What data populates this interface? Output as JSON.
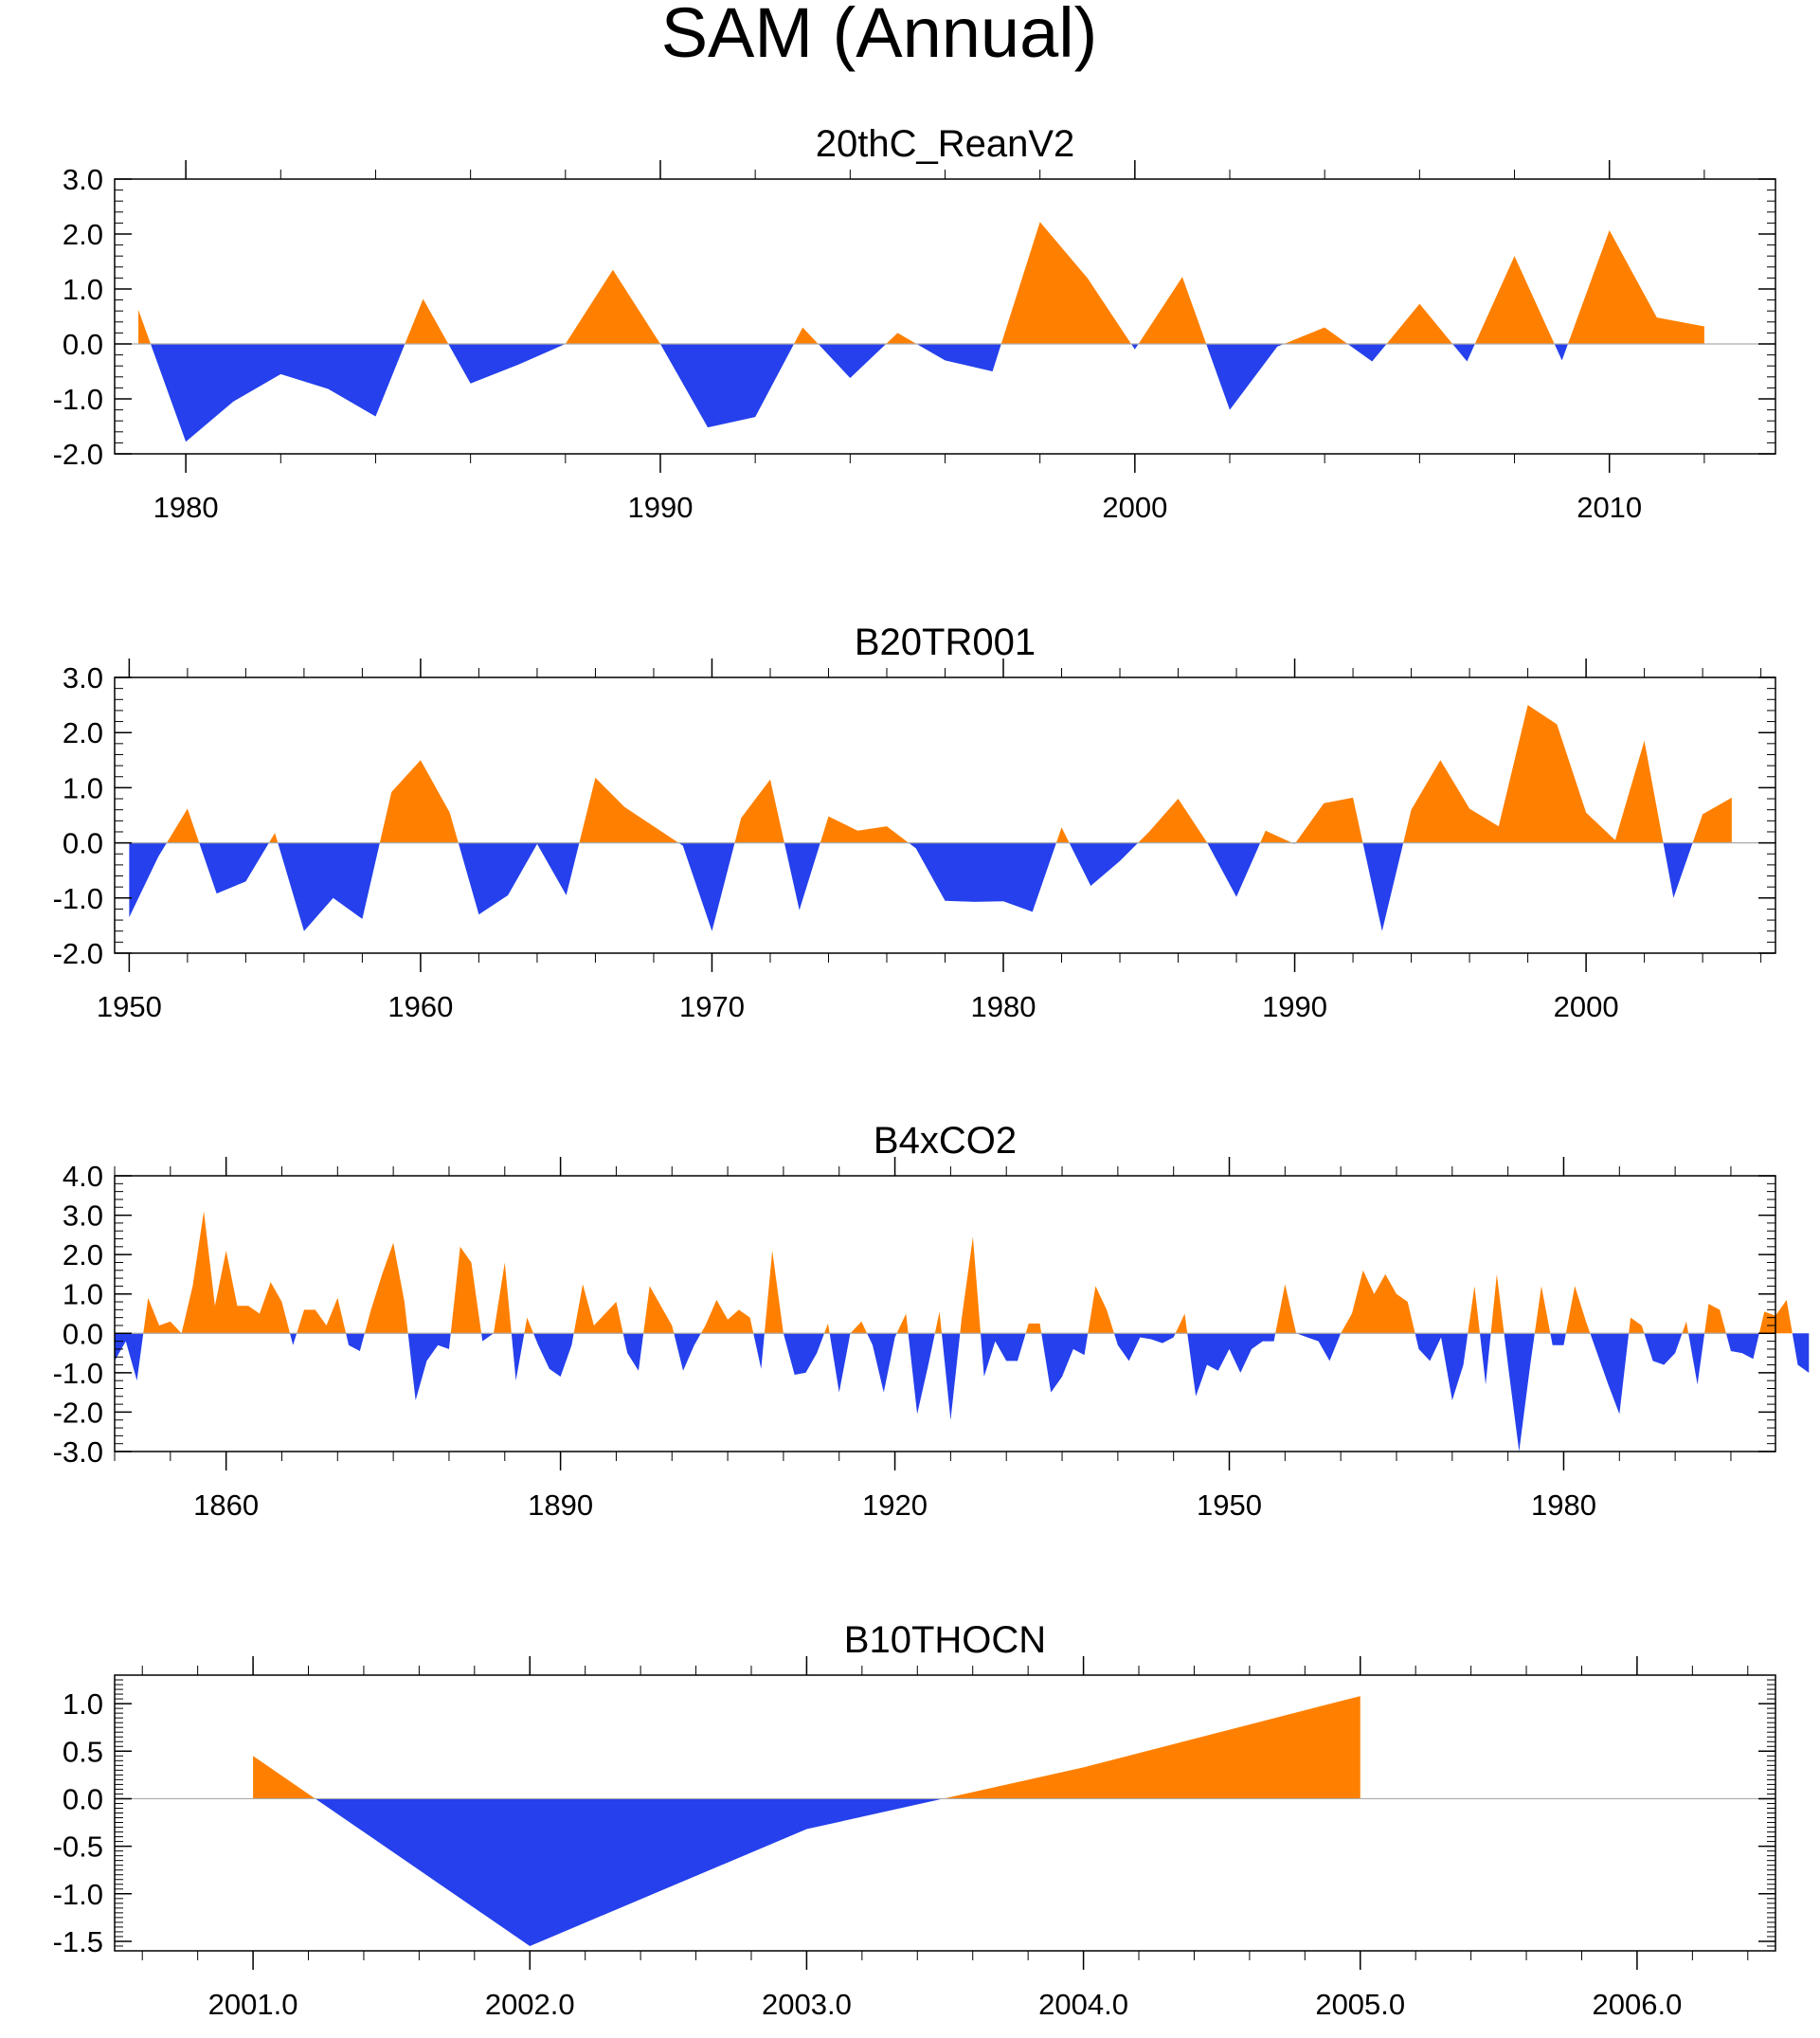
{
  "title": "SAM (Annual)",
  "colors": {
    "positive": "#ff8000",
    "negative": "#2540ec",
    "zero_line": "#aaaaaa",
    "axis": "#000000"
  },
  "chart_data": [
    {
      "type": "area",
      "title": "20thC_ReanV2",
      "xlim": [
        1978.5,
        2013.5
      ],
      "ylim": [
        -2.0,
        3.0
      ],
      "yticks": [
        -2,
        -1,
        0,
        1,
        2,
        3
      ],
      "ytick_labels": [
        "-2.0",
        "-1.0",
        "0.0",
        "1.0",
        "2.0",
        "3.0"
      ],
      "xticks": [
        1980,
        1990,
        2000,
        2010
      ],
      "xtick_labels": [
        "1980",
        "1990",
        "2000",
        "2010"
      ],
      "x_minor_step": 2,
      "y_minor_step": 0.2,
      "x": [
        1979,
        1980,
        1981,
        1982,
        1983,
        1984,
        1985,
        1986,
        1987,
        1988,
        1989,
        1990,
        1991,
        1992,
        1993,
        1994,
        1995,
        1996,
        1997,
        1998,
        1999,
        2000,
        2001,
        2002,
        2003,
        2004,
        2005,
        2006,
        2007,
        2008,
        2009,
        2010,
        2011,
        2012
      ],
      "values": [
        0.62,
        -1.78,
        -1.05,
        -0.55,
        -0.82,
        -1.32,
        0.82,
        -0.72,
        -0.38,
        0.0,
        1.35,
        0.0,
        -1.52,
        -1.33,
        0.3,
        -0.62,
        0.2,
        -0.3,
        -0.5,
        2.22,
        1.2,
        -0.1,
        1.22,
        -1.2,
        -0.05,
        0.3,
        -0.32,
        0.73,
        -0.32,
        1.6,
        -0.3,
        2.07,
        0.48,
        0.32
      ]
    },
    {
      "type": "area",
      "title": "B20TR001",
      "xlim": [
        1949.5,
        2006.5
      ],
      "ylim": [
        -2.0,
        3.0
      ],
      "yticks": [
        -2,
        -1,
        0,
        1,
        2,
        3
      ],
      "ytick_labels": [
        "-2.0",
        "-1.0",
        "0.0",
        "1.0",
        "2.0",
        "3.0"
      ],
      "xticks": [
        1950,
        1960,
        1970,
        1980,
        1990,
        2000
      ],
      "xtick_labels": [
        "1950",
        "1960",
        "1970",
        "1980",
        "1990",
        "2000"
      ],
      "x_minor_step": 2,
      "y_minor_step": 0.2,
      "x": [
        1950,
        1951,
        1952,
        1953,
        1954,
        1955,
        1956,
        1957,
        1958,
        1959,
        1960,
        1961,
        1962,
        1963,
        1964,
        1965,
        1966,
        1967,
        1968,
        1969,
        1970,
        1971,
        1972,
        1973,
        1974,
        1975,
        1976,
        1977,
        1978,
        1979,
        1980,
        1981,
        1982,
        1983,
        1984,
        1985,
        1986,
        1987,
        1988,
        1989,
        1990,
        1991,
        1992,
        1993,
        1994,
        1995,
        1996,
        1997,
        1998,
        1999,
        2000,
        2001,
        2002,
        2003,
        2004,
        2005
      ],
      "values": [
        -1.35,
        -0.25,
        0.62,
        -0.92,
        -0.7,
        0.18,
        -1.6,
        -1.0,
        -1.38,
        0.92,
        1.5,
        0.55,
        -1.3,
        -0.95,
        -0.02,
        -0.95,
        1.18,
        0.65,
        0.3,
        -0.05,
        -1.6,
        0.45,
        1.15,
        -1.22,
        0.48,
        0.22,
        0.3,
        -0.1,
        -1.05,
        -1.07,
        -1.06,
        -1.25,
        0.28,
        -0.78,
        -0.33,
        0.2,
        0.8,
        0.0,
        -0.98,
        0.22,
        -0.02,
        0.72,
        0.82,
        -1.6,
        0.6,
        1.5,
        0.62,
        0.3,
        2.5,
        2.15,
        0.55,
        0.05,
        1.85,
        -1.0,
        0.52,
        0.82
      ]
    },
    {
      "type": "area",
      "title": "B4xCO2",
      "xlim": [
        1850,
        1999
      ],
      "ylim": [
        -3.0,
        4.0
      ],
      "yticks": [
        -3,
        -2,
        -1,
        0,
        1,
        2,
        3,
        4
      ],
      "ytick_labels": [
        "-3.0",
        "-2.0",
        "-1.0",
        "0.0",
        "1.0",
        "2.0",
        "3.0",
        "4.0"
      ],
      "xticks": [
        1860,
        1890,
        1920,
        1950,
        1980
      ],
      "xtick_labels": [
        "1860",
        "1890",
        "1920",
        "1950",
        "1980"
      ],
      "x_minor_step": 5,
      "y_minor_step": 0.2,
      "x_start": 1850,
      "x_step": 1,
      "values": [
        -0.7,
        -0.2,
        -1.2,
        0.9,
        0.2,
        0.3,
        0.0,
        1.2,
        3.1,
        0.7,
        2.1,
        0.7,
        0.7,
        0.5,
        1.3,
        0.8,
        -0.3,
        0.6,
        0.6,
        0.2,
        0.9,
        -0.3,
        -0.45,
        0.6,
        1.5,
        2.3,
        0.8,
        -1.7,
        -0.7,
        -0.3,
        -0.4,
        2.2,
        1.8,
        -0.2,
        0.0,
        1.8,
        -1.2,
        0.4,
        -0.3,
        -0.9,
        -1.1,
        -0.3,
        1.25,
        0.2,
        0.5,
        0.8,
        -0.5,
        -0.95,
        1.2,
        0.7,
        0.2,
        -0.95,
        -0.3,
        0.2,
        0.85,
        0.35,
        0.6,
        0.4,
        -0.9,
        2.1,
        0.0,
        -1.05,
        -1.0,
        -0.5,
        0.25,
        -1.5,
        0.0,
        0.3,
        -0.3,
        -1.5,
        -0.1,
        0.5,
        -2.05,
        -0.8,
        0.55,
        -2.2,
        0.4,
        2.45,
        -1.1,
        -0.2,
        -0.7,
        -0.7,
        0.25,
        0.25,
        -1.5,
        -1.1,
        -0.4,
        -0.55,
        1.2,
        0.6,
        -0.3,
        -0.7,
        -0.1,
        -0.15,
        -0.25,
        -0.1,
        0.5,
        -1.6,
        -0.8,
        -0.95,
        -0.4,
        -1.0,
        -0.4,
        -0.2,
        -0.2,
        1.25,
        0.0,
        -0.1,
        -0.2,
        -0.7,
        0.0,
        0.5,
        1.6,
        1.0,
        1.5,
        1.0,
        0.8,
        -0.4,
        -0.7,
        -0.1,
        -1.7,
        -0.8,
        1.2,
        -1.3,
        1.5,
        -0.8,
        -3.0,
        -0.8,
        1.2,
        -0.3,
        -0.3,
        1.2,
        0.3,
        -0.5,
        -1.3,
        -2.05,
        0.4,
        0.2,
        -0.7,
        -0.8,
        -0.5,
        0.3,
        -1.3,
        0.75,
        0.6,
        -0.45,
        -0.5,
        -0.65,
        0.55,
        0.45,
        0.85,
        -0.8,
        -1.0
      ]
    },
    {
      "type": "area",
      "title": "B10THOCN",
      "xlim": [
        2000.5,
        2006.5
      ],
      "ylim": [
        -1.6,
        1.3
      ],
      "yticks": [
        -1.5,
        -1.0,
        -0.5,
        0.0,
        0.5,
        1.0
      ],
      "ytick_labels": [
        "-1.5",
        "-1.0",
        "-0.5",
        "0.0",
        "0.5",
        "1.0"
      ],
      "xticks": [
        2001,
        2002,
        2003,
        2004,
        2005,
        2006
      ],
      "xtick_labels": [
        "2001.0",
        "2002.0",
        "2003.0",
        "2004.0",
        "2005.0",
        "2006.0"
      ],
      "x_minor_step": 0.2,
      "y_minor_step": 0.05,
      "x": [
        2001,
        2002,
        2003,
        2004,
        2005
      ],
      "values": [
        0.45,
        -1.55,
        -0.32,
        0.33,
        1.08
      ]
    }
  ]
}
